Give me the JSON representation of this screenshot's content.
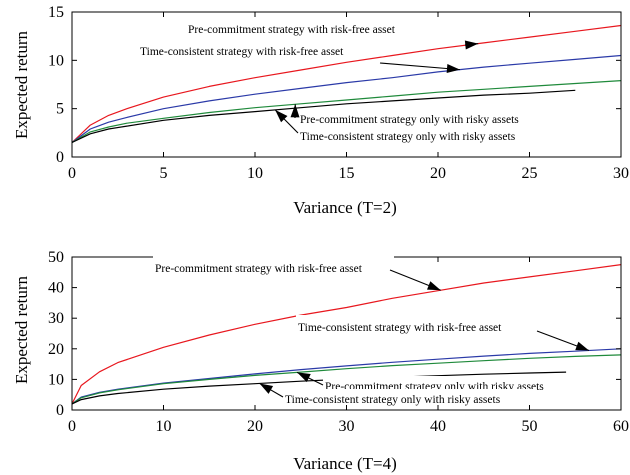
{
  "colors": {
    "red": "#e8171e",
    "blue": "#2b3aa8",
    "green": "#1f8a3b",
    "black": "#000000"
  },
  "chart_data": [
    {
      "type": "line",
      "xlabel": "Variance (T=2)",
      "ylabel": "Expected return",
      "xlim": [
        0,
        30
      ],
      "ylim": [
        0,
        15
      ],
      "xticks": [
        "0",
        "5",
        "10",
        "15",
        "20",
        "25",
        "30"
      ],
      "yticks": [
        "0",
        "5",
        "10",
        "15"
      ],
      "grid": false,
      "series": [
        {
          "name": "Pre-commitment strategy with risk-free asset",
          "color": "red",
          "x": [
            0,
            1,
            2,
            3,
            5,
            7.5,
            10,
            12.5,
            15,
            17.5,
            20,
            22.5,
            25,
            27.5,
            30
          ],
          "y": [
            1.5,
            3.3,
            4.3,
            5.0,
            6.2,
            7.3,
            8.2,
            9.0,
            9.8,
            10.5,
            11.2,
            11.8,
            12.4,
            13.0,
            13.6
          ]
        },
        {
          "name": "Time-consistent strategy with risk-free asset",
          "color": "blue",
          "x": [
            0,
            1,
            2,
            3,
            5,
            7.5,
            10,
            12.5,
            15,
            17.5,
            20,
            22.5,
            25,
            27.5,
            30
          ],
          "y": [
            1.5,
            2.9,
            3.6,
            4.1,
            5.0,
            5.8,
            6.5,
            7.1,
            7.7,
            8.2,
            8.8,
            9.3,
            9.7,
            10.1,
            10.5
          ]
        },
        {
          "name": "Pre-commitment strategy only with risky assets",
          "color": "green",
          "x": [
            0,
            1,
            2,
            3,
            5,
            7.5,
            10,
            12.5,
            15,
            17.5,
            20,
            22.5,
            25,
            27.5,
            30
          ],
          "y": [
            1.5,
            2.6,
            3.1,
            3.5,
            4.0,
            4.6,
            5.1,
            5.5,
            5.9,
            6.3,
            6.7,
            7.0,
            7.3,
            7.6,
            7.9
          ]
        },
        {
          "name": "Time-consistent strategy only with risky assets",
          "color": "black",
          "x": [
            0,
            1,
            2,
            3,
            5,
            7.5,
            10,
            12.5,
            15,
            17.5,
            20,
            22.5,
            25,
            27.5
          ],
          "y": [
            1.5,
            2.4,
            2.9,
            3.2,
            3.8,
            4.3,
            4.7,
            5.1,
            5.5,
            5.8,
            6.1,
            6.4,
            6.6,
            6.9
          ]
        }
      ],
      "annotations": [
        {
          "text": "Pre-commitment strategy with risk-free asset",
          "series": 0
        },
        {
          "text": "Time-consistent strategy with risk-free asset",
          "series": 1
        },
        {
          "text": "Pre-commitment strategy only with risky assets",
          "series": 2
        },
        {
          "text": "Time-consistent strategy only with risky assets",
          "series": 3
        }
      ]
    },
    {
      "type": "line",
      "xlabel": "Variance (T=4)",
      "ylabel": "Expected return",
      "xlim": [
        0,
        60
      ],
      "ylim": [
        0,
        50
      ],
      "xticks": [
        "0",
        "10",
        "20",
        "30",
        "40",
        "50",
        "60"
      ],
      "yticks": [
        "0",
        "10",
        "20",
        "30",
        "40",
        "50"
      ],
      "grid": false,
      "series": [
        {
          "name": "Pre-commitment strategy with risk-free asset",
          "color": "red",
          "x": [
            0,
            1,
            3,
            5,
            10,
            15,
            20,
            25,
            30,
            35,
            40,
            45,
            50,
            55,
            60
          ],
          "y": [
            2,
            8,
            12.5,
            15.5,
            20.5,
            24.5,
            28,
            31,
            33.5,
            36.5,
            39,
            41.5,
            43.5,
            45.5,
            47.5
          ]
        },
        {
          "name": "Time-consistent strategy with risk-free asset",
          "color": "blue",
          "x": [
            0,
            1,
            3,
            5,
            10,
            15,
            20,
            25,
            30,
            35,
            40,
            45,
            50,
            55,
            60
          ],
          "y": [
            2,
            4.2,
            5.8,
            6.8,
            8.8,
            10.3,
            11.8,
            13.2,
            14.4,
            15.6,
            16.6,
            17.6,
            18.5,
            19.2,
            20
          ]
        },
        {
          "name": "Pre-commitment strategy only with risky assets",
          "color": "green",
          "x": [
            0,
            1,
            3,
            5,
            10,
            15,
            20,
            25,
            30,
            35,
            40,
            45,
            50,
            55,
            60
          ],
          "y": [
            2,
            4.0,
            5.6,
            6.6,
            8.6,
            10.0,
            11.3,
            12.4,
            13.5,
            14.5,
            15.3,
            16.1,
            16.9,
            17.5,
            18
          ]
        },
        {
          "name": "Time-consistent strategy only with risky assets",
          "color": "black",
          "x": [
            0,
            1,
            3,
            5,
            10,
            15,
            20,
            25,
            30,
            35,
            40,
            45,
            50,
            54
          ],
          "y": [
            2,
            3.4,
            4.6,
            5.4,
            6.8,
            7.8,
            8.6,
            9.4,
            10.1,
            10.7,
            11.2,
            11.7,
            12.1,
            12.4
          ]
        }
      ],
      "annotations": [
        {
          "text": "Pre-commitment strategy with risk-free asset",
          "series": 0
        },
        {
          "text": "Time-consistent strategy with risk-free asset",
          "series": 1
        },
        {
          "text": "Pre-commitment strategy only with risky assets",
          "series": 2
        },
        {
          "text": "Time-consistent strategy only with risky assets",
          "series": 3
        }
      ]
    }
  ]
}
